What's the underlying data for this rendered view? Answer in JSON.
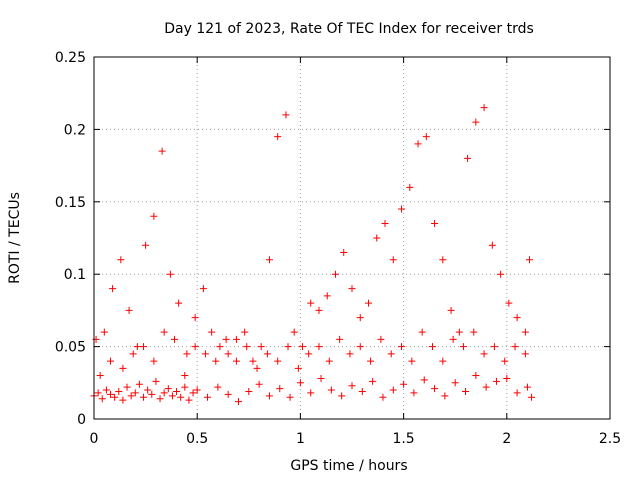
{
  "chart_data": {
    "type": "scatter",
    "title": "Day 121 of 2023, Rate Of TEC Index for receiver trds",
    "xlabel": "GPS time / hours",
    "ylabel": "ROTI / TECUs",
    "xlim": [
      0,
      2.5
    ],
    "ylim": [
      0,
      0.25
    ],
    "xticks": [
      0,
      0.5,
      1,
      1.5,
      2,
      2.5
    ],
    "xtick_labels": [
      "0",
      "0.5",
      "1",
      "1.5",
      "2",
      "2.5"
    ],
    "yticks": [
      0,
      0.05,
      0.1,
      0.15,
      0.2,
      0.25
    ],
    "ytick_labels": [
      "0",
      "0.05",
      "0.1",
      "0.15",
      "0.2",
      "0.25"
    ],
    "grid": true,
    "marker": "+",
    "marker_color": "#ff0000",
    "series": [
      {
        "x": [
          0.0,
          0.02,
          0.04,
          0.06,
          0.08,
          0.1,
          0.12,
          0.14,
          0.16,
          0.18,
          0.2,
          0.22,
          0.24,
          0.26,
          0.28,
          0.3,
          0.32,
          0.34,
          0.36,
          0.38,
          0.4,
          0.42,
          0.44,
          0.46,
          0.48,
          0.5,
          0.55,
          0.6,
          0.65,
          0.7,
          0.75,
          0.8,
          0.85,
          0.9,
          0.95,
          1.0,
          1.05,
          1.1,
          1.15,
          1.2,
          1.25,
          1.3,
          1.35,
          1.4,
          1.45,
          1.5,
          1.55,
          1.6,
          1.65,
          1.7,
          1.75,
          1.8,
          1.85,
          1.9,
          1.95,
          2.0,
          2.05,
          2.1,
          2.12,
          0.01,
          0.05,
          0.09,
          0.13,
          0.17,
          0.21,
          0.25,
          0.29,
          0.33,
          0.37,
          0.41,
          0.45,
          0.49,
          0.53,
          0.57,
          0.61,
          0.65,
          0.69,
          0.73,
          0.77,
          0.81,
          0.85,
          0.89,
          0.93,
          0.97,
          1.01,
          1.05,
          1.09,
          1.13,
          1.17,
          1.21,
          1.25,
          1.29,
          1.33,
          1.37,
          1.41,
          1.45,
          1.49,
          1.53,
          1.57,
          1.61,
          1.65,
          1.69,
          1.73,
          1.77,
          1.81,
          1.85,
          1.89,
          1.93,
          1.97,
          2.01,
          2.05,
          2.09,
          2.11,
          0.03,
          0.08,
          0.14,
          0.19,
          0.24,
          0.29,
          0.34,
          0.39,
          0.44,
          0.49,
          0.54,
          0.59,
          0.64,
          0.69,
          0.74,
          0.79,
          0.84,
          0.89,
          0.94,
          0.99,
          1.04,
          1.09,
          1.14,
          1.19,
          1.24,
          1.29,
          1.34,
          1.39,
          1.44,
          1.49,
          1.54,
          1.59,
          1.64,
          1.69,
          1.74,
          1.79,
          1.84,
          1.89,
          1.94,
          1.99,
          2.04,
          2.09
        ],
        "y": [
          0.016,
          0.018,
          0.014,
          0.02,
          0.017,
          0.015,
          0.019,
          0.013,
          0.022,
          0.016,
          0.018,
          0.024,
          0.015,
          0.02,
          0.017,
          0.026,
          0.014,
          0.018,
          0.021,
          0.016,
          0.019,
          0.015,
          0.022,
          0.013,
          0.018,
          0.02,
          0.015,
          0.022,
          0.017,
          0.012,
          0.019,
          0.024,
          0.016,
          0.021,
          0.015,
          0.025,
          0.018,
          0.028,
          0.02,
          0.016,
          0.023,
          0.019,
          0.026,
          0.015,
          0.02,
          0.024,
          0.018,
          0.027,
          0.021,
          0.016,
          0.025,
          0.019,
          0.03,
          0.022,
          0.026,
          0.028,
          0.018,
          0.022,
          0.015,
          0.055,
          0.06,
          0.09,
          0.11,
          0.075,
          0.05,
          0.12,
          0.14,
          0.185,
          0.1,
          0.08,
          0.045,
          0.07,
          0.09,
          0.06,
          0.05,
          0.045,
          0.055,
          0.06,
          0.04,
          0.05,
          0.11,
          0.195,
          0.21,
          0.06,
          0.05,
          0.08,
          0.075,
          0.085,
          0.1,
          0.115,
          0.09,
          0.07,
          0.08,
          0.125,
          0.135,
          0.11,
          0.145,
          0.16,
          0.19,
          0.195,
          0.135,
          0.11,
          0.075,
          0.06,
          0.18,
          0.205,
          0.215,
          0.12,
          0.1,
          0.08,
          0.07,
          0.06,
          0.11,
          0.03,
          0.04,
          0.035,
          0.045,
          0.05,
          0.04,
          0.06,
          0.055,
          0.03,
          0.05,
          0.045,
          0.04,
          0.055,
          0.04,
          0.05,
          0.035,
          0.045,
          0.04,
          0.05,
          0.035,
          0.045,
          0.05,
          0.04,
          0.055,
          0.045,
          0.05,
          0.04,
          0.055,
          0.045,
          0.05,
          0.04,
          0.06,
          0.05,
          0.04,
          0.055,
          0.05,
          0.06,
          0.045,
          0.05,
          0.04,
          0.05,
          0.045
        ]
      }
    ]
  }
}
